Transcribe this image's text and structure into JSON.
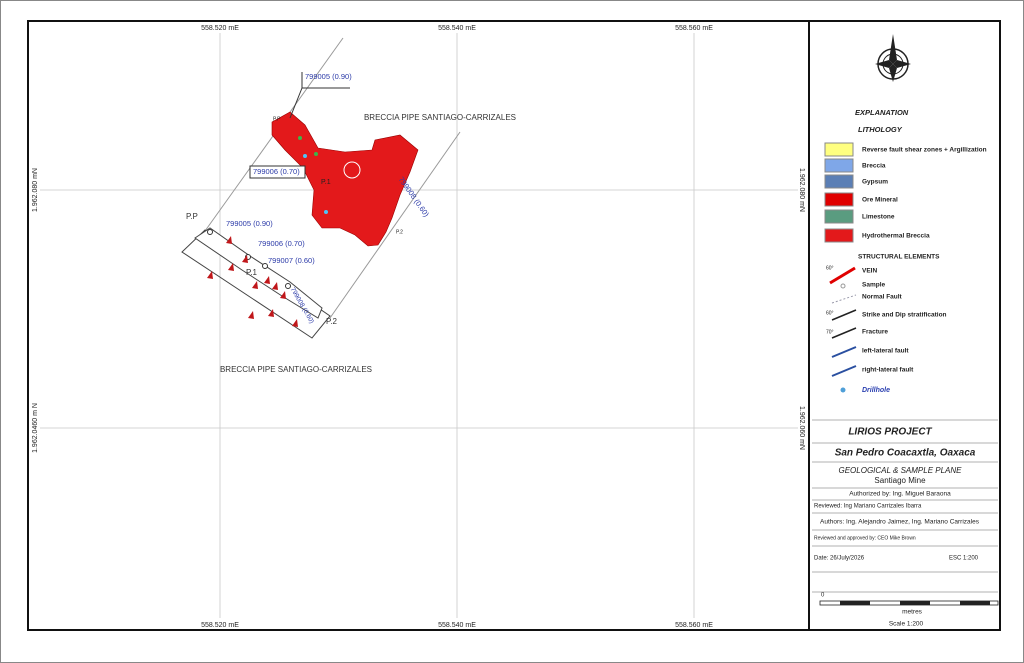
{
  "grid": {
    "top_labels": [
      "558.520 mE",
      "558.540 mE",
      "558.560 mE"
    ],
    "bottom_labels": [
      "558.520 mE",
      "558.540 mE",
      "558.560 mE"
    ],
    "left_labels": [
      "1.962.080 mN",
      "1.962.0460  m N"
    ],
    "right_labels": [
      "1.962.080 mN",
      "1.962.060 mN"
    ]
  },
  "map": {
    "labels": [
      "BRECCIA PIPE SANTIAGO-CARRIZALES",
      "BRECCIA PIPE SANTIAGO-CARRIZALES"
    ],
    "upper_samples": [
      "799005 (0.90)",
      "799006 (0.70)",
      "799008 (0.60)"
    ],
    "upper_points": [
      "P.P",
      "P.1",
      "P.2"
    ],
    "lower_samples": [
      "799005 (0.90)",
      "799006 (0.70)",
      "799007 (0.60)",
      "799008 (0.60)"
    ],
    "lower_points": [
      "P.P",
      "P.1",
      "P.2"
    ]
  },
  "legend": {
    "title": "EXPLANATION",
    "lithology_title": "LITHOLOGY",
    "lithology": [
      "Reverse fault shear zones + Argillization",
      "Breccia",
      "Gypsum",
      "Ore Mineral",
      "Limestone",
      "Hydrothermal Breccia"
    ],
    "structural_title": "STRUCTURAL ELEMENTS",
    "structural": [
      "VEIN",
      "Sample",
      "Normal Fault",
      "Strike and Dip stratification",
      "Fracture",
      "left-lateral fault",
      "right-lateral fault",
      "Drillhole"
    ],
    "angles": [
      "60°",
      "60°",
      "70°"
    ]
  },
  "title_block": {
    "project": "LIRIOS PROJECT",
    "location": "San Pedro Coacaxtla, Oaxaca",
    "plane": "GEOLOGICAL  & SAMPLE PLANE",
    "mine": "Santiago Mine",
    "authorized": "Authorized by:  Ing. Miguel Baraona",
    "reviewed": "Reviewed: Ing Mariano Carrizales Ibarra",
    "authors": "Authors: Ing. Alejandro Jaimez, Ing. Mariano Carrizales",
    "approved": "Reviewed and approved by: CEO Mike Brown",
    "date": "Date: 26/July/2026",
    "esc": "ESC 1:200",
    "scale_zero": "0",
    "scale_unit": "metres",
    "scale": "Scale 1:200"
  }
}
